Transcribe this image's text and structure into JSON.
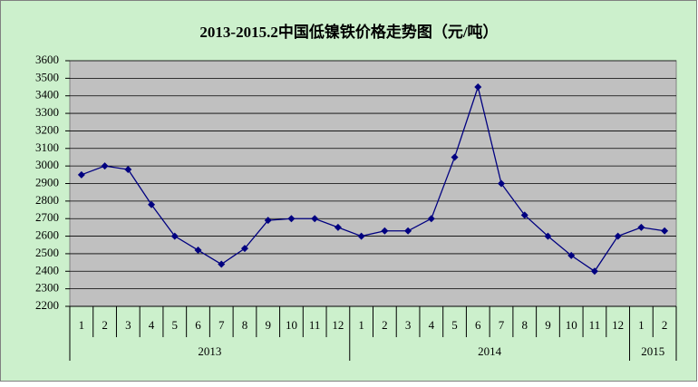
{
  "chart_data": {
    "type": "line",
    "title": "2013-2015.2中国低镍铁价格走势图（元/吨）",
    "groups": [
      {
        "name": "2013",
        "categories": [
          "1",
          "2",
          "3",
          "4",
          "5",
          "6",
          "7",
          "8",
          "9",
          "10",
          "11",
          "12"
        ]
      },
      {
        "name": "2014",
        "categories": [
          "1",
          "2",
          "3",
          "4",
          "5",
          "6",
          "7",
          "8",
          "9",
          "10",
          "11",
          "12"
        ]
      },
      {
        "name": "2015",
        "categories": [
          "1",
          "2"
        ]
      }
    ],
    "series": [
      {
        "color": "#000080",
        "values": [
          2950,
          3000,
          2980,
          2780,
          2600,
          2520,
          2440,
          2530,
          2690,
          2700,
          2700,
          2650,
          2600,
          2630,
          2630,
          2700,
          3050,
          3450,
          2900,
          2720,
          2600,
          2490,
          2400,
          2600,
          2650,
          2630
        ]
      }
    ],
    "ylim": [
      2200,
      3600
    ],
    "yticks": [
      2200,
      2300,
      2400,
      2500,
      2600,
      2700,
      2800,
      2900,
      3000,
      3100,
      3200,
      3300,
      3400,
      3500,
      3600
    ],
    "grid": true,
    "plot_background": "#c0c0c0",
    "background": "#ccf0cc"
  }
}
